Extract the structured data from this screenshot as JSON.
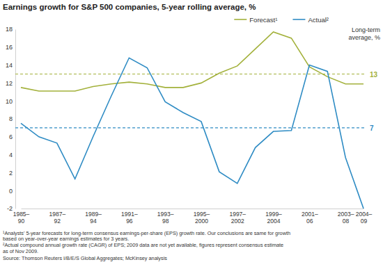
{
  "chart_data": {
    "type": "line",
    "title": "Earnings growth for S&P 500 companies, 5-year rolling average, %",
    "categories": [
      "1985–90",
      null,
      "1987–92",
      null,
      "1989–94",
      null,
      "1991–96",
      null,
      "1993–98",
      null,
      "1995–2000",
      null,
      "1997–2002",
      null,
      "1999–2004",
      null,
      "2001–06",
      null,
      "2003–08",
      "2004–09"
    ],
    "series": [
      {
        "name": "Forecast¹",
        "color": "#a3b13b",
        "values": [
          11.5,
          11.1,
          11.1,
          11.1,
          11.6,
          11.9,
          12.1,
          11.9,
          11.5,
          11.5,
          12.0,
          13.1,
          13.9,
          15.8,
          17.7,
          17.0,
          13.8,
          12.7,
          11.9,
          11.9
        ]
      },
      {
        "name": "Actual²",
        "color": "#2f8cc4",
        "values": [
          7.5,
          6.0,
          5.3,
          1.3,
          6.0,
          10.5,
          14.8,
          13.7,
          9.9,
          8.7,
          7.7,
          2.1,
          0.8,
          4.8,
          6.6,
          6.7,
          14.0,
          13.3,
          3.7,
          -2.0
        ]
      }
    ],
    "ylim": [
      -2,
      18
    ],
    "yticks": [
      -2,
      0,
      2,
      4,
      6,
      8,
      10,
      12,
      14,
      16,
      18
    ],
    "grid": false,
    "legend": "upper right",
    "averages": {
      "label": [
        "Long-term",
        "average, %"
      ],
      "lines": [
        {
          "value": 13,
          "color": "#a3b13b"
        },
        {
          "value": 7,
          "color": "#2f8cc4"
        }
      ]
    },
    "footnotes": [
      [
        "¹Analysts' 5-year forecasts for long-term consensus earnings-per-share (EPS) growth rate. Our conclusions are same for growth",
        "based on year-over-year earnings estimates for 3 years."
      ],
      [
        "²Actual compound annual growth rate (CAGR) of EPS; 2009 data are not yet available, figures represent consensus estimate",
        "as of Nov 2009."
      ]
    ],
    "source": "Source: Thomson Reuters I/B/E/S Global Aggregates; McKinsey analysis"
  }
}
